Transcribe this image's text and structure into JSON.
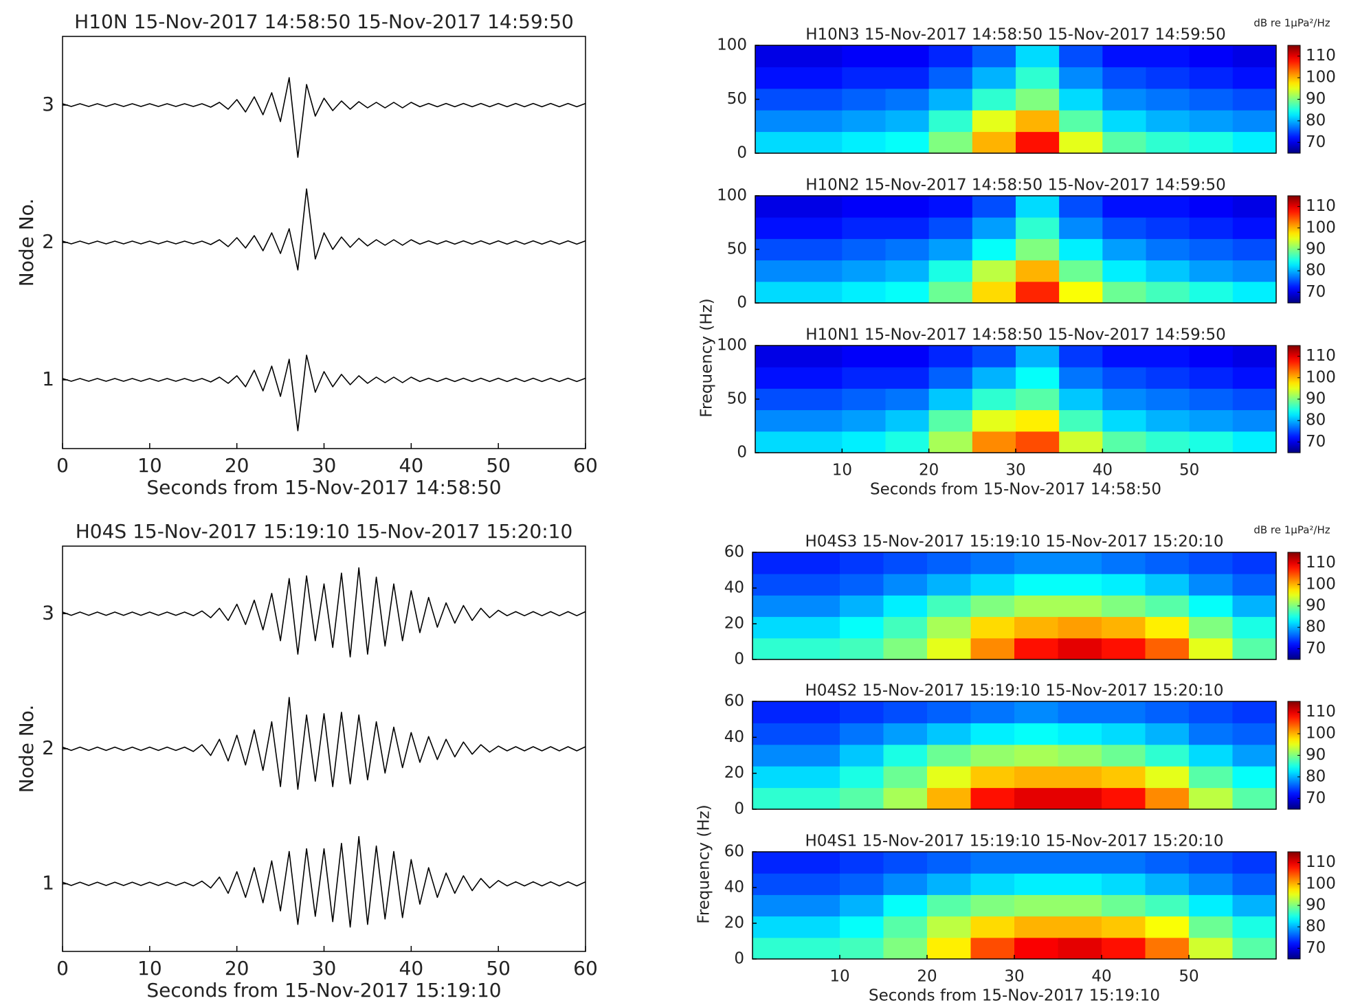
{
  "chart_data": [
    {
      "type": "waveform",
      "title": "H10N 15-Nov-2017 14:58:50 15-Nov-2017 14:59:50",
      "xlabel": "Seconds from 15-Nov-2017 14:58:50",
      "ylabel": "Node No.",
      "xlim": [
        0,
        60
      ],
      "xticks": [
        0,
        10,
        20,
        30,
        40,
        50,
        60
      ],
      "ylim": [
        0.5,
        3.5
      ],
      "yticks": [
        1,
        2,
        3
      ],
      "color": "#000000",
      "x": [
        0,
        1,
        2,
        3,
        4,
        5,
        6,
        7,
        8,
        9,
        10,
        11,
        12,
        13,
        14,
        15,
        16,
        17,
        18,
        19,
        20,
        21,
        22,
        23,
        24,
        25,
        26,
        27,
        28,
        29,
        30,
        31,
        32,
        33,
        34,
        35,
        36,
        37,
        38,
        39,
        40,
        41,
        42,
        43,
        44,
        45,
        46,
        47,
        48,
        49,
        50,
        51,
        52,
        53,
        54,
        55,
        56,
        57,
        58,
        59,
        60
      ],
      "series": [
        {
          "offset": 3,
          "values": [
            0.01,
            0.01,
            0.01,
            0.01,
            0.01,
            0.01,
            0.01,
            0.01,
            0.01,
            0.01,
            0.01,
            0.01,
            0.01,
            0.01,
            0.01,
            0.01,
            0.01,
            0.015,
            0.02,
            0.03,
            0.04,
            0.05,
            0.06,
            0.07,
            0.09,
            0.12,
            0.2,
            0.38,
            0.15,
            0.08,
            0.05,
            0.04,
            0.03,
            0.03,
            0.025,
            0.02,
            0.02,
            0.02,
            0.02,
            0.02,
            0.02,
            0.012,
            0.012,
            0.012,
            0.012,
            0.012,
            0.012,
            0.012,
            0.012,
            0.012,
            0.012,
            0.012,
            0.012,
            0.012,
            0.012,
            0.012,
            0.012,
            0.012,
            0.012,
            0.012,
            0.012
          ]
        },
        {
          "offset": 2,
          "values": [
            0.01,
            0.01,
            0.01,
            0.01,
            0.01,
            0.01,
            0.01,
            0.01,
            0.01,
            0.01,
            0.01,
            0.01,
            0.01,
            0.01,
            0.01,
            0.01,
            0.01,
            0.015,
            0.02,
            0.03,
            0.035,
            0.04,
            0.05,
            0.06,
            0.07,
            0.08,
            0.1,
            0.2,
            0.39,
            0.12,
            0.07,
            0.05,
            0.04,
            0.035,
            0.03,
            0.025,
            0.02,
            0.02,
            0.02,
            0.02,
            0.02,
            0.012,
            0.012,
            0.012,
            0.012,
            0.012,
            0.012,
            0.012,
            0.012,
            0.012,
            0.012,
            0.012,
            0.012,
            0.012,
            0.012,
            0.012,
            0.012,
            0.012,
            0.012,
            0.012,
            0.012
          ]
        },
        {
          "offset": 1,
          "values": [
            0.01,
            0.01,
            0.01,
            0.01,
            0.01,
            0.01,
            0.01,
            0.01,
            0.01,
            0.01,
            0.01,
            0.01,
            0.01,
            0.01,
            0.01,
            0.01,
            0.01,
            0.015,
            0.02,
            0.025,
            0.03,
            0.05,
            0.07,
            0.08,
            0.1,
            0.12,
            0.15,
            0.37,
            0.18,
            0.09,
            0.06,
            0.05,
            0.04,
            0.035,
            0.03,
            0.025,
            0.02,
            0.02,
            0.02,
            0.02,
            0.02,
            0.012,
            0.012,
            0.012,
            0.012,
            0.012,
            0.012,
            0.012,
            0.012,
            0.012,
            0.012,
            0.012,
            0.012,
            0.012,
            0.012,
            0.012,
            0.012,
            0.012,
            0.012,
            0.012,
            0.012
          ]
        }
      ]
    },
    {
      "type": "heatmap",
      "title": "H10N3 15-Nov-2017 14:58:50 15-Nov-2017 14:59:50",
      "colorbar_label": "dB re 1μPa²/Hz",
      "colormap": "jet",
      "xlim": [
        0,
        60
      ],
      "ylim": [
        0,
        100
      ],
      "yticks": [
        0,
        50,
        100
      ],
      "clim": [
        65,
        115
      ],
      "cticks": [
        70,
        80,
        90,
        100,
        110
      ],
      "z": [
        [
          82,
          82,
          83,
          84,
          90,
          100,
          108,
          95,
          88,
          86,
          85,
          83
        ],
        [
          78,
          78,
          79,
          80,
          86,
          95,
          100,
          88,
          82,
          80,
          79,
          78
        ],
        [
          75,
          75,
          76,
          77,
          80,
          86,
          90,
          82,
          78,
          77,
          76,
          75
        ],
        [
          72,
          72,
          73,
          73,
          76,
          80,
          86,
          78,
          75,
          74,
          73,
          72
        ],
        [
          70,
          70,
          71,
          71,
          73,
          76,
          82,
          75,
          72,
          72,
          71,
          70
        ]
      ]
    },
    {
      "type": "heatmap",
      "title": "H10N2 15-Nov-2017 14:58:50 15-Nov-2017 14:59:50",
      "colormap": "jet",
      "xlim": [
        0,
        60
      ],
      "ylim": [
        0,
        100
      ],
      "yticks": [
        0,
        50,
        100
      ],
      "clim": [
        65,
        115
      ],
      "cticks": [
        70,
        80,
        90,
        100,
        110
      ],
      "z": [
        [
          82,
          82,
          83,
          84,
          89,
          98,
          107,
          96,
          89,
          87,
          85,
          83
        ],
        [
          78,
          78,
          79,
          80,
          85,
          93,
          100,
          89,
          83,
          81,
          79,
          78
        ],
        [
          75,
          75,
          76,
          77,
          79,
          84,
          90,
          83,
          79,
          77,
          76,
          75
        ],
        [
          72,
          72,
          73,
          73,
          75,
          79,
          86,
          78,
          75,
          74,
          73,
          72
        ],
        [
          70,
          70,
          71,
          71,
          72,
          75,
          82,
          75,
          72,
          72,
          71,
          70
        ]
      ]
    },
    {
      "type": "heatmap",
      "title": "H10N1 15-Nov-2017 14:58:50 15-Nov-2017 14:59:50",
      "xlabel": "Seconds from 15-Nov-2017 14:58:50",
      "ylabel": "Frequency (Hz)",
      "colormap": "jet",
      "xlim": [
        0,
        60
      ],
      "ylim": [
        0,
        100
      ],
      "xticks": [
        10,
        20,
        30,
        40,
        50
      ],
      "yticks": [
        0,
        50,
        100
      ],
      "clim": [
        65,
        115
      ],
      "cticks": [
        70,
        80,
        90,
        100,
        110
      ],
      "z": [
        [
          82,
          82,
          83,
          85,
          92,
          102,
          105,
          94,
          88,
          86,
          85,
          83
        ],
        [
          78,
          78,
          79,
          81,
          88,
          95,
          97,
          87,
          82,
          80,
          79,
          78
        ],
        [
          75,
          75,
          76,
          77,
          81,
          86,
          88,
          81,
          78,
          77,
          76,
          75
        ],
        [
          72,
          72,
          73,
          73,
          76,
          80,
          84,
          77,
          75,
          74,
          73,
          72
        ],
        [
          70,
          70,
          71,
          71,
          73,
          75,
          80,
          74,
          72,
          72,
          71,
          70
        ]
      ]
    },
    {
      "type": "waveform",
      "title": "H04S 15-Nov-2017 15:19:10 15-Nov-2017 15:20:10",
      "xlabel": "Seconds from 15-Nov-2017 15:19:10",
      "ylabel": "Node No.",
      "xlim": [
        0,
        60
      ],
      "xticks": [
        0,
        10,
        20,
        30,
        40,
        50,
        60
      ],
      "ylim": [
        0.5,
        3.5
      ],
      "yticks": [
        1,
        2,
        3
      ],
      "color": "#000000",
      "x": [
        0,
        1,
        2,
        3,
        4,
        5,
        6,
        7,
        8,
        9,
        10,
        11,
        12,
        13,
        14,
        15,
        16,
        17,
        18,
        19,
        20,
        21,
        22,
        23,
        24,
        25,
        26,
        27,
        28,
        29,
        30,
        31,
        32,
        33,
        34,
        35,
        36,
        37,
        38,
        39,
        40,
        41,
        42,
        43,
        44,
        45,
        46,
        47,
        48,
        49,
        50,
        51,
        52,
        53,
        54,
        55,
        56,
        57,
        58,
        59,
        60
      ],
      "series": [
        {
          "offset": 3,
          "values": [
            0.012,
            0.012,
            0.012,
            0.012,
            0.012,
            0.012,
            0.012,
            0.012,
            0.012,
            0.012,
            0.012,
            0.012,
            0.012,
            0.012,
            0.012,
            0.015,
            0.02,
            0.03,
            0.04,
            0.05,
            0.07,
            0.08,
            0.1,
            0.12,
            0.15,
            0.2,
            0.26,
            0.3,
            0.28,
            0.2,
            0.22,
            0.25,
            0.3,
            0.32,
            0.34,
            0.3,
            0.27,
            0.24,
            0.22,
            0.2,
            0.17,
            0.14,
            0.12,
            0.1,
            0.08,
            0.07,
            0.06,
            0.05,
            0.04,
            0.03,
            0.025,
            0.015,
            0.015,
            0.015,
            0.015,
            0.015,
            0.015,
            0.015,
            0.015,
            0.015,
            0.015
          ]
        },
        {
          "offset": 2,
          "values": [
            0.012,
            0.012,
            0.012,
            0.012,
            0.012,
            0.012,
            0.012,
            0.012,
            0.012,
            0.012,
            0.012,
            0.012,
            0.012,
            0.012,
            0.012,
            0.02,
            0.03,
            0.05,
            0.07,
            0.09,
            0.1,
            0.12,
            0.14,
            0.16,
            0.2,
            0.28,
            0.38,
            0.3,
            0.25,
            0.24,
            0.26,
            0.28,
            0.27,
            0.26,
            0.25,
            0.23,
            0.2,
            0.18,
            0.16,
            0.14,
            0.12,
            0.1,
            0.09,
            0.08,
            0.07,
            0.06,
            0.05,
            0.04,
            0.03,
            0.025,
            0.02,
            0.015,
            0.015,
            0.015,
            0.015,
            0.015,
            0.015,
            0.015,
            0.015,
            0.015,
            0.015
          ]
        },
        {
          "offset": 1,
          "values": [
            0.012,
            0.012,
            0.012,
            0.012,
            0.012,
            0.012,
            0.012,
            0.012,
            0.012,
            0.012,
            0.012,
            0.012,
            0.012,
            0.012,
            0.012,
            0.015,
            0.02,
            0.03,
            0.05,
            0.07,
            0.09,
            0.1,
            0.12,
            0.14,
            0.17,
            0.2,
            0.24,
            0.3,
            0.26,
            0.24,
            0.26,
            0.28,
            0.3,
            0.32,
            0.35,
            0.3,
            0.28,
            0.26,
            0.24,
            0.25,
            0.18,
            0.15,
            0.12,
            0.1,
            0.08,
            0.07,
            0.06,
            0.05,
            0.04,
            0.03,
            0.025,
            0.015,
            0.015,
            0.015,
            0.015,
            0.015,
            0.015,
            0.015,
            0.015,
            0.015,
            0.015
          ]
        }
      ]
    },
    {
      "type": "heatmap",
      "title": "H04S3 15-Nov-2017 15:19:10 15-Nov-2017 15:20:10",
      "colorbar_label": "dB re 1μPa²/Hz",
      "colormap": "jet",
      "xlim": [
        0,
        60
      ],
      "ylim": [
        0,
        60
      ],
      "yticks": [
        0,
        20,
        40,
        60
      ],
      "clim": [
        65,
        115
      ],
      "cticks": [
        70,
        80,
        90,
        100,
        110
      ],
      "z": [
        [
          86,
          86,
          87,
          90,
          95,
          102,
          108,
          110,
          108,
          104,
          95,
          88
        ],
        [
          82,
          82,
          84,
          87,
          92,
          98,
          100,
          101,
          100,
          97,
          90,
          85
        ],
        [
          78,
          78,
          80,
          83,
          87,
          90,
          92,
          92,
          90,
          88,
          84,
          80
        ],
        [
          75,
          75,
          76,
          78,
          80,
          82,
          84,
          84,
          83,
          81,
          78,
          76
        ],
        [
          73,
          73,
          74,
          75,
          76,
          77,
          78,
          78,
          77,
          76,
          75,
          74
        ]
      ]
    },
    {
      "type": "heatmap",
      "title": "H04S2 15-Nov-2017 15:19:10 15-Nov-2017 15:20:10",
      "colormap": "jet",
      "xlim": [
        0,
        60
      ],
      "ylim": [
        0,
        60
      ],
      "yticks": [
        0,
        20,
        40,
        60
      ],
      "clim": [
        65,
        115
      ],
      "cticks": [
        70,
        80,
        90,
        100,
        110
      ],
      "z": [
        [
          86,
          86,
          88,
          92,
          100,
          108,
          110,
          110,
          108,
          102,
          93,
          88
        ],
        [
          82,
          82,
          85,
          89,
          95,
          99,
          100,
          100,
          99,
          95,
          88,
          84
        ],
        [
          78,
          78,
          81,
          85,
          89,
          91,
          92,
          91,
          89,
          86,
          82,
          79
        ],
        [
          75,
          75,
          77,
          79,
          81,
          83,
          84,
          83,
          82,
          80,
          77,
          76
        ],
        [
          73,
          73,
          74,
          75,
          76,
          77,
          78,
          77,
          77,
          76,
          75,
          74
        ]
      ]
    },
    {
      "type": "heatmap",
      "title": "H04S1 15-Nov-2017 15:19:10 15-Nov-2017 15:20:10",
      "xlabel": "Seconds from 15-Nov-2017 15:19:10",
      "ylabel": "Frequency (Hz)",
      "colormap": "jet",
      "xlim": [
        0,
        60
      ],
      "ylim": [
        0,
        60
      ],
      "xticks": [
        10,
        20,
        30,
        40,
        50
      ],
      "yticks": [
        0,
        20,
        40,
        60
      ],
      "clim": [
        65,
        115
      ],
      "cticks": [
        70,
        80,
        90,
        100,
        110
      ],
      "z": [
        [
          86,
          86,
          87,
          90,
          97,
          105,
          109,
          110,
          108,
          103,
          94,
          88
        ],
        [
          82,
          82,
          84,
          88,
          93,
          98,
          100,
          100,
          99,
          96,
          89,
          85
        ],
        [
          78,
          78,
          80,
          84,
          88,
          90,
          91,
          91,
          89,
          87,
          83,
          80
        ],
        [
          75,
          75,
          76,
          78,
          80,
          82,
          83,
          83,
          82,
          80,
          78,
          76
        ],
        [
          73,
          73,
          74,
          75,
          76,
          77,
          77,
          77,
          77,
          76,
          75,
          74
        ]
      ]
    }
  ]
}
